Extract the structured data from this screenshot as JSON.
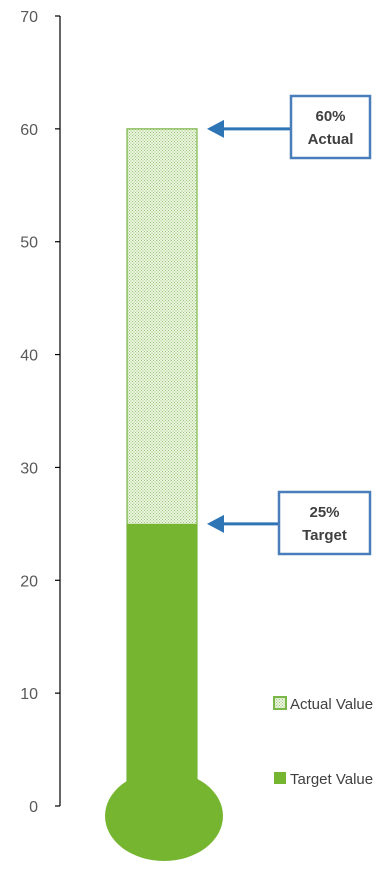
{
  "chart_data": {
    "type": "bar",
    "ylim": [
      0,
      70
    ],
    "yticks": [
      "0",
      "10",
      "20",
      "30",
      "40",
      "50",
      "60",
      "70"
    ],
    "series": [
      {
        "name": "Actual Value",
        "value": 60,
        "color": "#7ab648",
        "fill": "dotted"
      },
      {
        "name": "Target Value",
        "value": 25,
        "color": "#76b530",
        "fill": "solid"
      }
    ],
    "annotations": [
      {
        "value": 60,
        "line1": "60%",
        "line2": "Actual"
      },
      {
        "value": 25,
        "line1": "25%",
        "line2": "Target"
      }
    ],
    "legend_position": "bottom-right",
    "style": "thermometer",
    "border_color": "#4a7ebb",
    "arrow_color": "#2e75b6"
  }
}
